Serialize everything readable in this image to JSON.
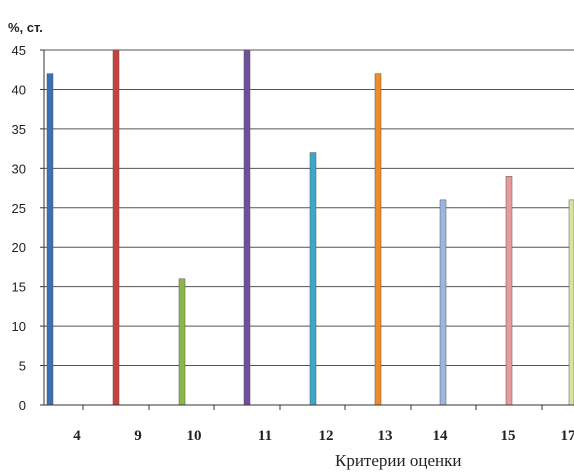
{
  "chart_data": {
    "type": "bar",
    "ylabel": "%, ст.",
    "xlabel": "Критерии оценки",
    "ylim": [
      0,
      45
    ],
    "yticks": [
      0,
      5,
      10,
      15,
      20,
      25,
      30,
      35,
      40,
      45
    ],
    "grid": true,
    "categories": [
      "4",
      "9",
      "10",
      "11",
      "12",
      "13",
      "14",
      "15",
      "17"
    ],
    "values": [
      42,
      45,
      16,
      45,
      32,
      42,
      26,
      29,
      26
    ],
    "colors": [
      "#3d6fb5",
      "#c9413c",
      "#8db64a",
      "#6f4f9c",
      "#3fa8c8",
      "#f08a2b",
      "#9cb6e0",
      "#e79b9b",
      "#d9e3a0"
    ]
  }
}
